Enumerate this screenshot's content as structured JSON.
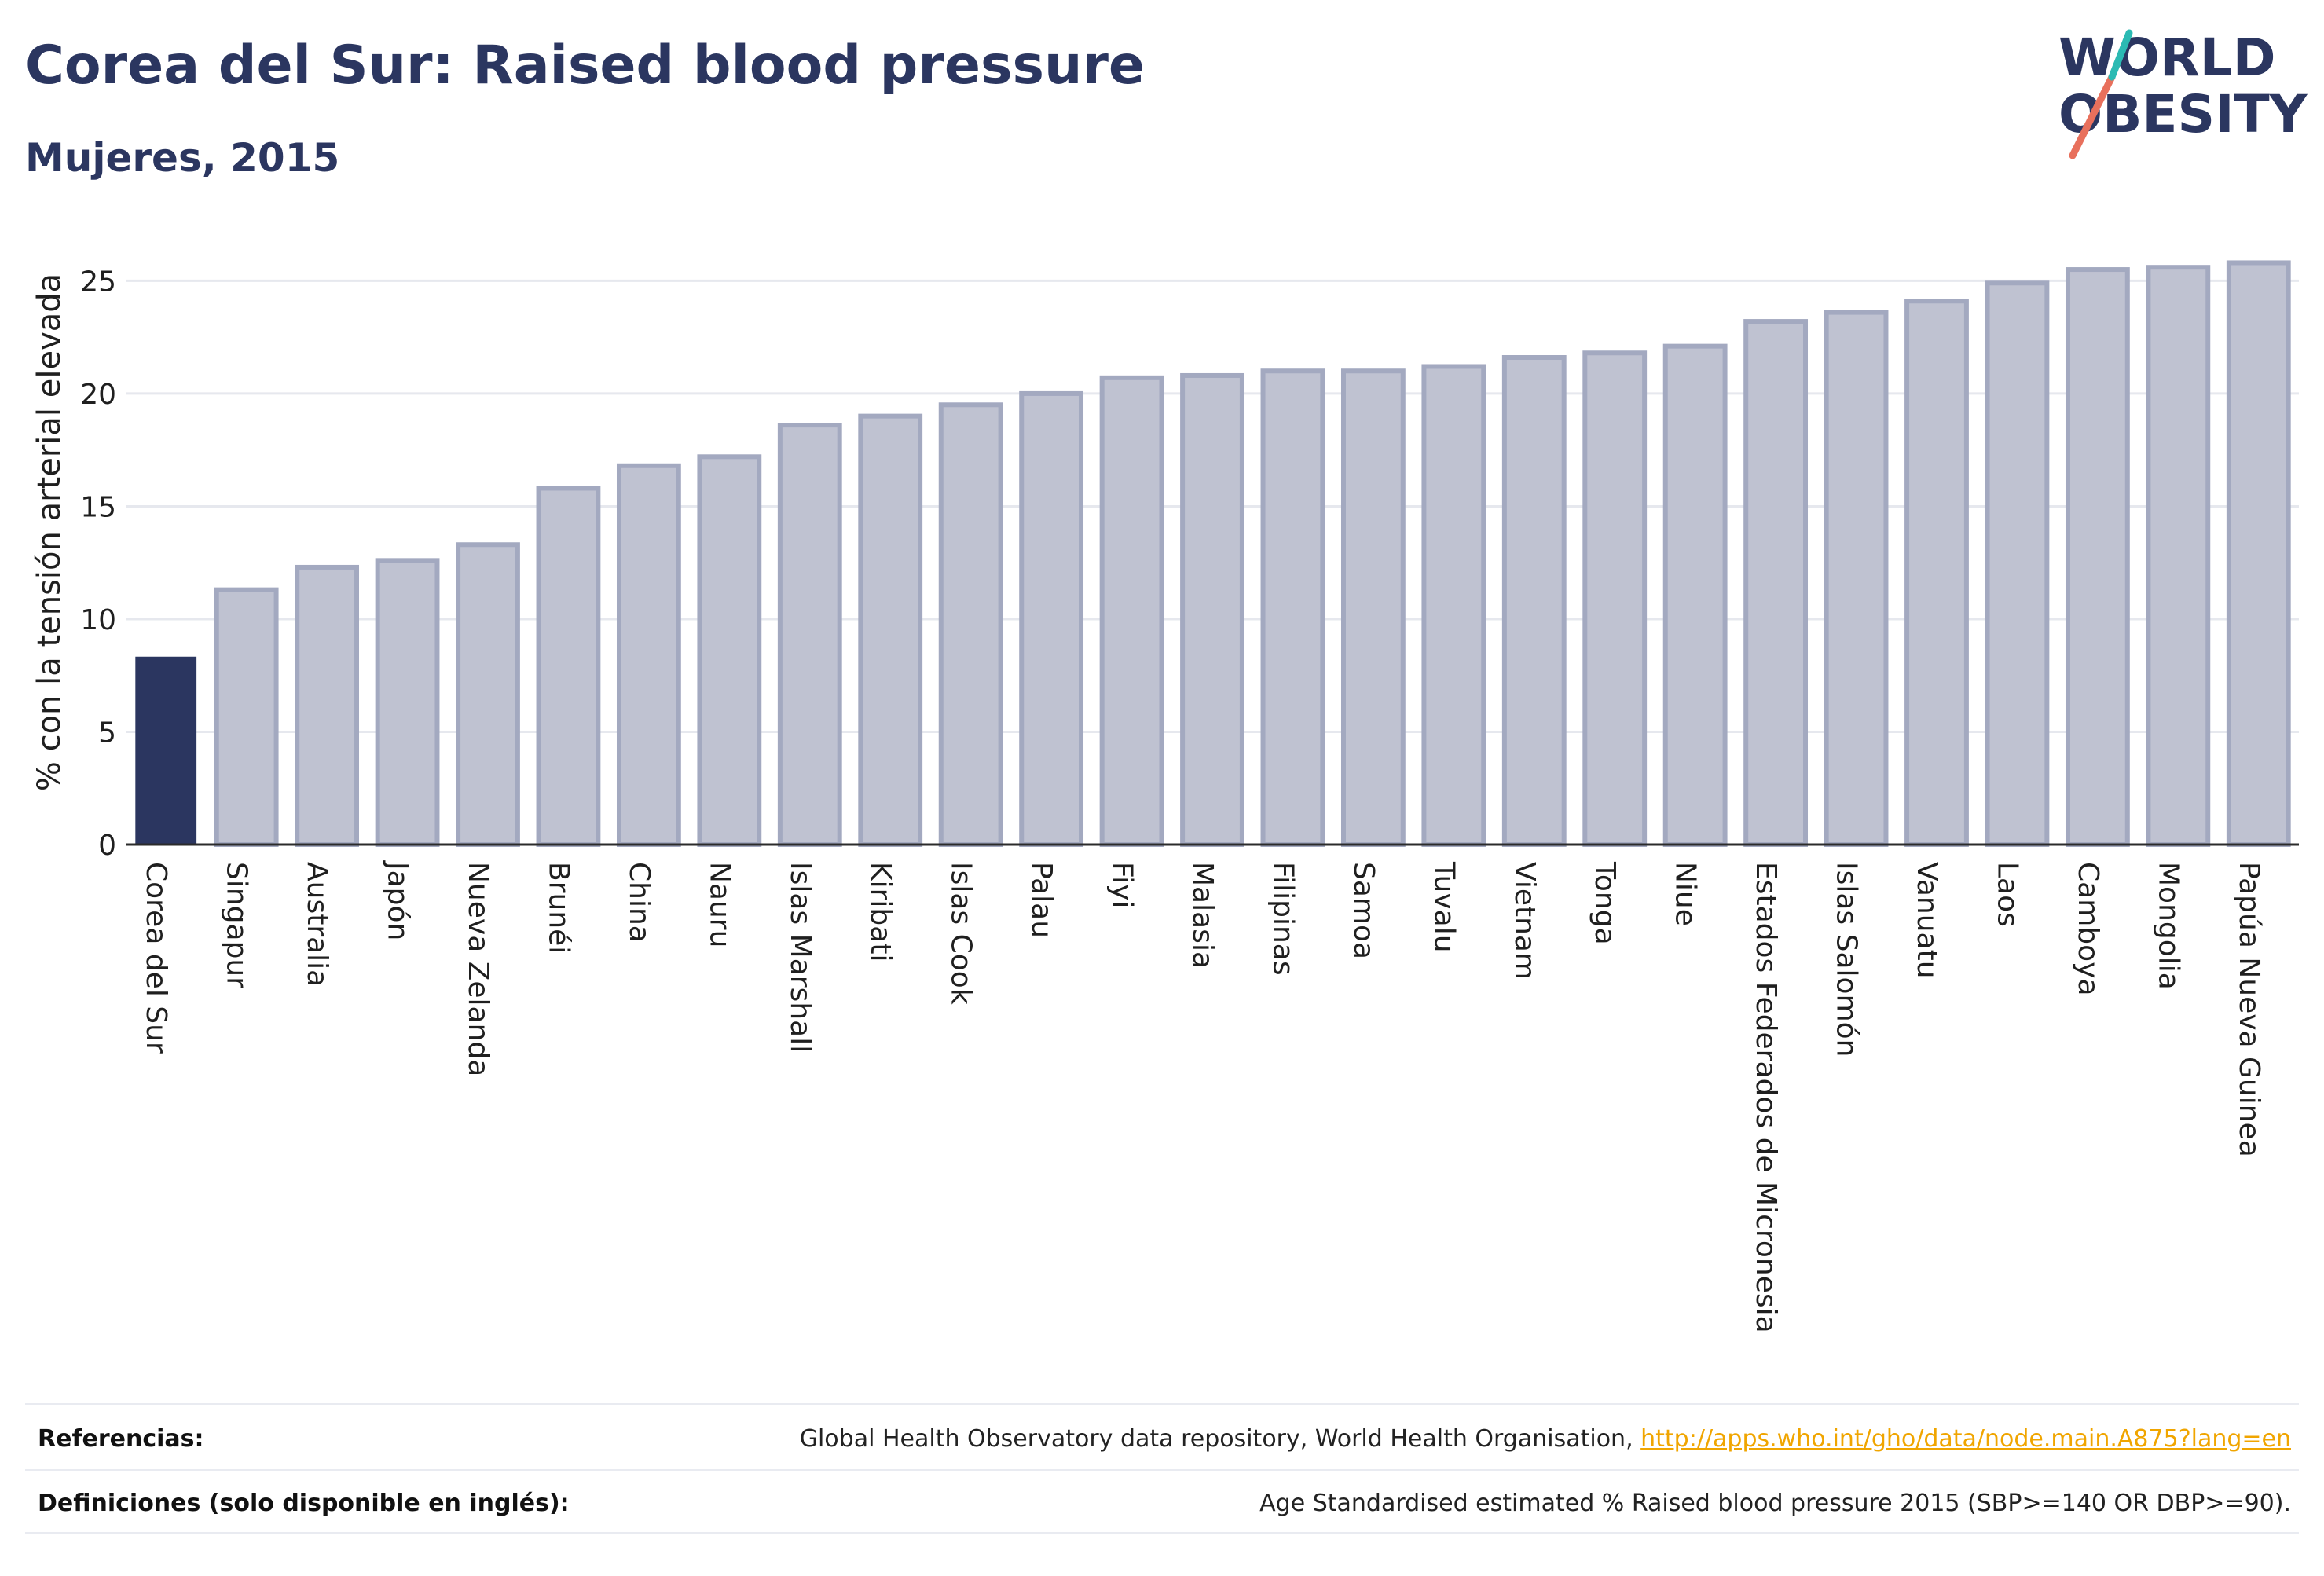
{
  "header": {
    "title": "Corea del Sur: Raised blood pressure",
    "subtitle": "Mujeres, 2015"
  },
  "logo": {
    "line1": "WORLD",
    "line2": "OBESITY"
  },
  "chart_data": {
    "type": "bar",
    "title": "Corea del Sur: Raised blood pressure",
    "subtitle": "Mujeres, 2015",
    "ylabel": "% con la tensión arterial elevada",
    "xlabel": "",
    "ylim": [
      0,
      27
    ],
    "yticks": [
      0,
      5,
      10,
      15,
      20,
      25
    ],
    "grid": true,
    "highlight_category": "Corea del Sur",
    "colors": {
      "highlight": "#2b3660",
      "bar_fill": "#bfc2d1",
      "bar_stroke": "#a3a9c0",
      "grid": "#e6e8ee",
      "axis": "#2b2b2b"
    },
    "categories": [
      "Corea del Sur",
      "Singapur",
      "Australia",
      "Japón",
      "Nueva Zelanda",
      "Brunéi",
      "China",
      "Nauru",
      "Islas Marshall",
      "Kiribati",
      "Islas Cook",
      "Palau",
      "Fiyi",
      "Malasia",
      "Filipinas",
      "Samoa",
      "Tuvalu",
      "Vietnam",
      "Tonga",
      "Niue",
      "Estados Federados de Micronesia",
      "Islas Salomón",
      "Vanuatu",
      "Laos",
      "Camboya",
      "Mongolia",
      "Papúa Nueva Guinea"
    ],
    "values": [
      8.3,
      11.3,
      12.3,
      12.6,
      13.3,
      15.8,
      16.8,
      17.2,
      18.6,
      19.0,
      19.5,
      20.0,
      20.7,
      20.8,
      21.0,
      21.0,
      21.2,
      21.6,
      21.8,
      22.1,
      23.2,
      23.6,
      24.1,
      24.9,
      25.5,
      25.6,
      25.8
    ]
  },
  "footer": {
    "references_label": "Referencias:",
    "references_text": "Global Health Observatory data repository, World Health Organisation, ",
    "references_link": "http://apps.who.int/gho/data/node.main.A875?lang=en",
    "definitions_label": "Definiciones (solo disponible en inglés):",
    "definitions_text": "Age Standardised estimated % Raised blood pressure 2015 (SBP>=140 OR DBP>=90)."
  }
}
